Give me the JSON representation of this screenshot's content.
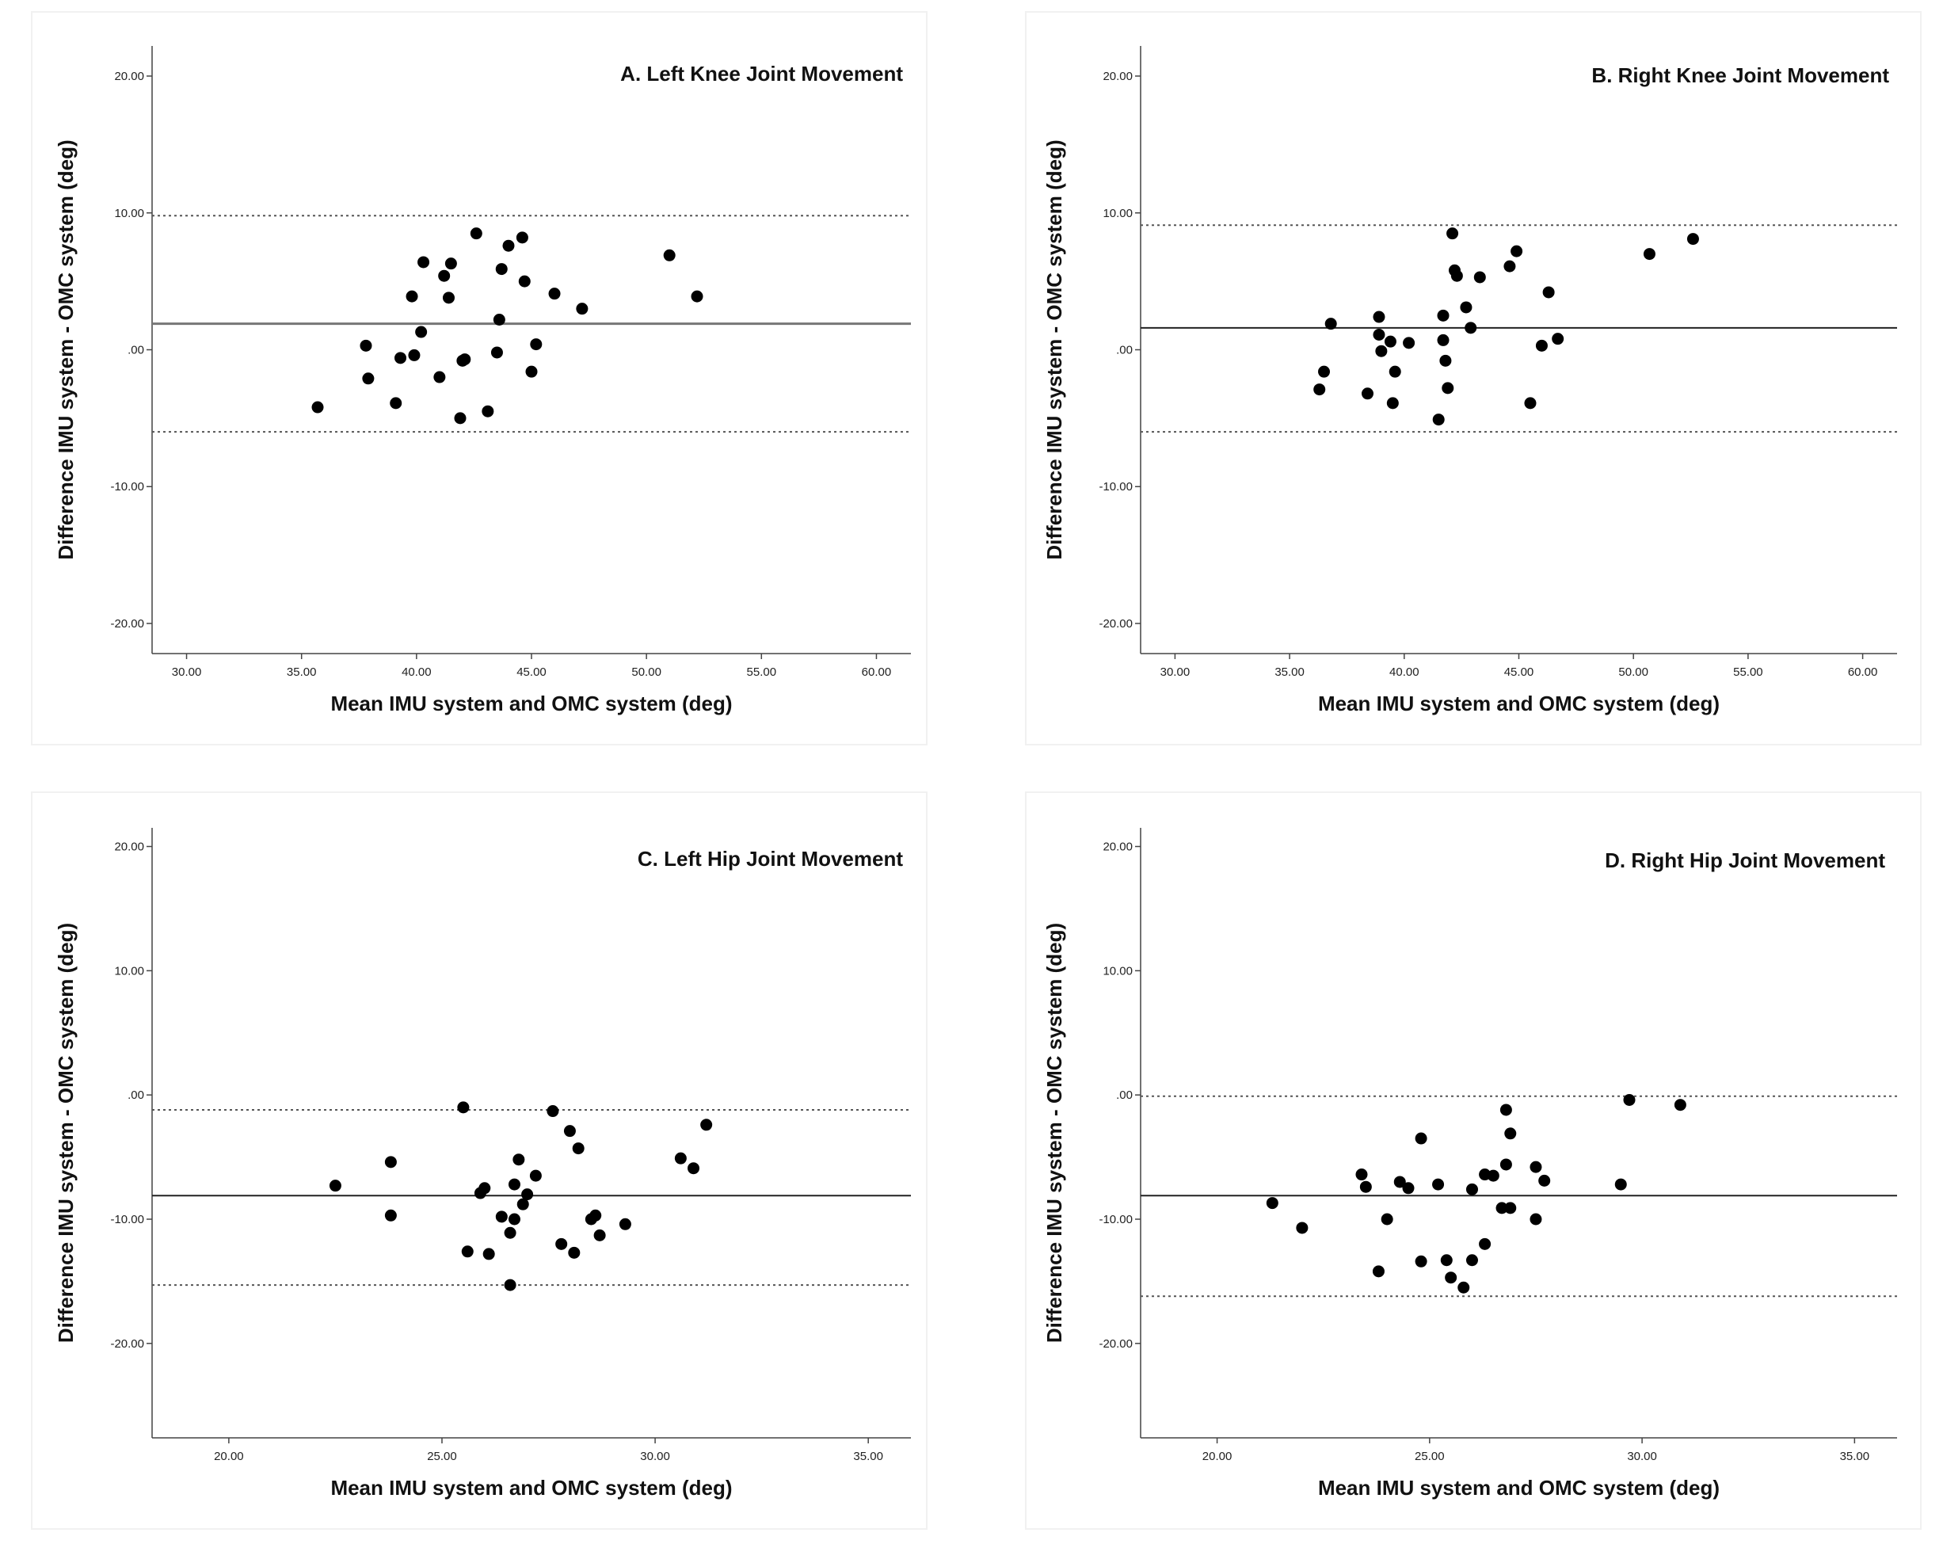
{
  "chart_data": [
    {
      "type": "scatter",
      "title": "A. Left Knee Joint Movement",
      "xlabel": "Mean IMU system and OMC system (deg)",
      "ylabel": "Difference IMU system - OMC system (deg)",
      "xlim": [
        28.5,
        61.5
      ],
      "ylim": [
        -22.2,
        22.2
      ],
      "xticks": [
        30,
        35,
        40,
        45,
        50,
        55,
        60
      ],
      "xtick_labels": [
        "30.00",
        "35.00",
        "40.00",
        "45.00",
        "50.00",
        "55.00",
        "60.00"
      ],
      "yticks": [
        20,
        10,
        0,
        -10,
        -20
      ],
      "ytick_labels": [
        "20.00",
        "10.00",
        ".00",
        "-10.00",
        "-20.00"
      ],
      "mean_diff": 1.9,
      "upper_loa": 9.8,
      "lower_loa": -6.0,
      "points": [
        [
          35.7,
          -4.2
        ],
        [
          37.8,
          0.3
        ],
        [
          37.9,
          -2.1
        ],
        [
          39.1,
          -3.9
        ],
        [
          39.3,
          -0.6
        ],
        [
          39.8,
          3.9
        ],
        [
          39.9,
          -0.4
        ],
        [
          40.2,
          1.3
        ],
        [
          40.3,
          6.4
        ],
        [
          41.0,
          -2.0
        ],
        [
          41.2,
          5.4
        ],
        [
          41.4,
          3.8
        ],
        [
          41.5,
          6.3
        ],
        [
          41.9,
          -5.0
        ],
        [
          42.0,
          -0.8
        ],
        [
          42.1,
          -0.7
        ],
        [
          42.6,
          8.5
        ],
        [
          43.1,
          -4.5
        ],
        [
          43.5,
          -0.2
        ],
        [
          43.6,
          2.2
        ],
        [
          43.7,
          5.9
        ],
        [
          44.0,
          7.6
        ],
        [
          44.6,
          8.2
        ],
        [
          44.7,
          5.0
        ],
        [
          45.0,
          -1.6
        ],
        [
          45.2,
          0.4
        ],
        [
          46.0,
          4.1
        ],
        [
          47.2,
          3.0
        ],
        [
          51.0,
          6.9
        ],
        [
          52.2,
          3.9
        ]
      ]
    },
    {
      "type": "scatter",
      "title": "B. Right Knee Joint Movement",
      "xlabel": "Mean IMU system and OMC system (deg)",
      "ylabel": "Difference IMU system - OMC system (deg)",
      "xlim": [
        28.5,
        61.5
      ],
      "ylim": [
        -22.2,
        22.2
      ],
      "xticks": [
        30,
        35,
        40,
        45,
        50,
        55,
        60
      ],
      "xtick_labels": [
        "30.00",
        "35.00",
        "40.00",
        "45.00",
        "50.00",
        "55.00",
        "60.00"
      ],
      "yticks": [
        20,
        10,
        0,
        -10,
        -20
      ],
      "ytick_labels": [
        "20.00",
        "10.00",
        ".00",
        "-10.00",
        "-20.00"
      ],
      "mean_diff": 1.6,
      "upper_loa": 9.1,
      "lower_loa": -6.0,
      "points": [
        [
          36.3,
          -2.9
        ],
        [
          36.5,
          -1.6
        ],
        [
          36.8,
          1.9
        ],
        [
          38.4,
          -3.2
        ],
        [
          38.9,
          1.1
        ],
        [
          38.9,
          2.4
        ],
        [
          39.0,
          -0.1
        ],
        [
          39.4,
          0.6
        ],
        [
          39.5,
          -3.9
        ],
        [
          39.6,
          -1.6
        ],
        [
          40.2,
          0.5
        ],
        [
          41.5,
          -5.1
        ],
        [
          41.7,
          2.5
        ],
        [
          41.7,
          0.7
        ],
        [
          41.8,
          -0.8
        ],
        [
          41.9,
          -2.8
        ],
        [
          42.1,
          8.5
        ],
        [
          42.2,
          5.8
        ],
        [
          42.3,
          5.4
        ],
        [
          42.7,
          3.1
        ],
        [
          42.9,
          1.6
        ],
        [
          43.3,
          5.3
        ],
        [
          44.6,
          6.1
        ],
        [
          44.9,
          7.2
        ],
        [
          45.5,
          -3.9
        ],
        [
          46.0,
          0.3
        ],
        [
          46.3,
          4.2
        ],
        [
          46.7,
          0.8
        ],
        [
          50.7,
          7.0
        ],
        [
          52.6,
          8.1
        ]
      ]
    },
    {
      "type": "scatter",
      "title": "C. Left Hip Joint Movement",
      "xlabel": "Mean IMU system and OMC system (deg)",
      "ylabel": "Difference IMU system - OMC system (deg)",
      "xlim": [
        18.2,
        36.0
      ],
      "ylim": [
        -27.6,
        21.5
      ],
      "xticks": [
        20,
        25,
        30,
        35
      ],
      "xtick_labels": [
        "20.00",
        "25.00",
        "30.00",
        "35.00"
      ],
      "yticks": [
        20,
        10,
        0,
        -10,
        -20
      ],
      "ytick_labels": [
        "20.00",
        "10.00",
        ".00",
        "-10.00",
        "-20.00"
      ],
      "mean_diff": -8.1,
      "upper_loa": -1.2,
      "lower_loa": -15.3,
      "points": [
        [
          22.5,
          -7.3
        ],
        [
          23.8,
          -5.4
        ],
        [
          23.8,
          -9.7
        ],
        [
          25.5,
          -1.0
        ],
        [
          25.6,
          -12.6
        ],
        [
          25.9,
          -7.9
        ],
        [
          26.0,
          -7.5
        ],
        [
          26.1,
          -12.8
        ],
        [
          26.4,
          -9.8
        ],
        [
          26.6,
          -11.1
        ],
        [
          26.6,
          -15.3
        ],
        [
          26.7,
          -7.2
        ],
        [
          26.7,
          -10.0
        ],
        [
          26.8,
          -5.2
        ],
        [
          26.9,
          -8.8
        ],
        [
          27.0,
          -8.0
        ],
        [
          27.2,
          -6.5
        ],
        [
          27.6,
          -1.3
        ],
        [
          27.8,
          -12.0
        ],
        [
          28.0,
          -2.9
        ],
        [
          28.1,
          -12.7
        ],
        [
          28.2,
          -4.3
        ],
        [
          28.5,
          -10.0
        ],
        [
          28.6,
          -9.7
        ],
        [
          28.7,
          -11.3
        ],
        [
          29.3,
          -10.4
        ],
        [
          30.6,
          -5.1
        ],
        [
          30.9,
          -5.9
        ],
        [
          31.2,
          -2.4
        ]
      ]
    },
    {
      "type": "scatter",
      "title": "D. Right Hip Joint Movement",
      "xlabel": "Mean IMU system and OMC system (deg)",
      "ylabel": "Difference IMU system - OMC system (deg)",
      "xlim": [
        18.2,
        36.0
      ],
      "ylim": [
        -27.6,
        21.5
      ],
      "xticks": [
        20,
        25,
        30,
        35
      ],
      "xtick_labels": [
        "20.00",
        "25.00",
        "30.00",
        "35.00"
      ],
      "yticks": [
        20,
        10,
        0,
        -10,
        -20
      ],
      "ytick_labels": [
        "20.00",
        "10.00",
        ".00",
        "-10.00",
        "-20.00"
      ],
      "mean_diff": -8.1,
      "upper_loa": -0.1,
      "lower_loa": -16.2,
      "points": [
        [
          21.3,
          -8.7
        ],
        [
          22.0,
          -10.7
        ],
        [
          23.4,
          -6.4
        ],
        [
          23.5,
          -7.4
        ],
        [
          23.8,
          -14.2
        ],
        [
          24.0,
          -10.0
        ],
        [
          24.3,
          -7.0
        ],
        [
          24.5,
          -7.5
        ],
        [
          24.8,
          -3.5
        ],
        [
          24.8,
          -13.4
        ],
        [
          25.2,
          -7.2
        ],
        [
          25.4,
          -13.3
        ],
        [
          25.5,
          -14.7
        ],
        [
          25.8,
          -15.5
        ],
        [
          26.0,
          -7.6
        ],
        [
          26.0,
          -13.3
        ],
        [
          26.3,
          -6.4
        ],
        [
          26.3,
          -12.0
        ],
        [
          26.5,
          -6.5
        ],
        [
          26.7,
          -9.1
        ],
        [
          26.8,
          -1.2
        ],
        [
          26.8,
          -5.6
        ],
        [
          26.9,
          -3.1
        ],
        [
          26.9,
          -9.1
        ],
        [
          27.5,
          -5.8
        ],
        [
          27.5,
          -10.0
        ],
        [
          27.7,
          -6.9
        ],
        [
          29.5,
          -7.2
        ],
        [
          29.7,
          -0.4
        ],
        [
          30.9,
          -0.8
        ]
      ]
    }
  ]
}
